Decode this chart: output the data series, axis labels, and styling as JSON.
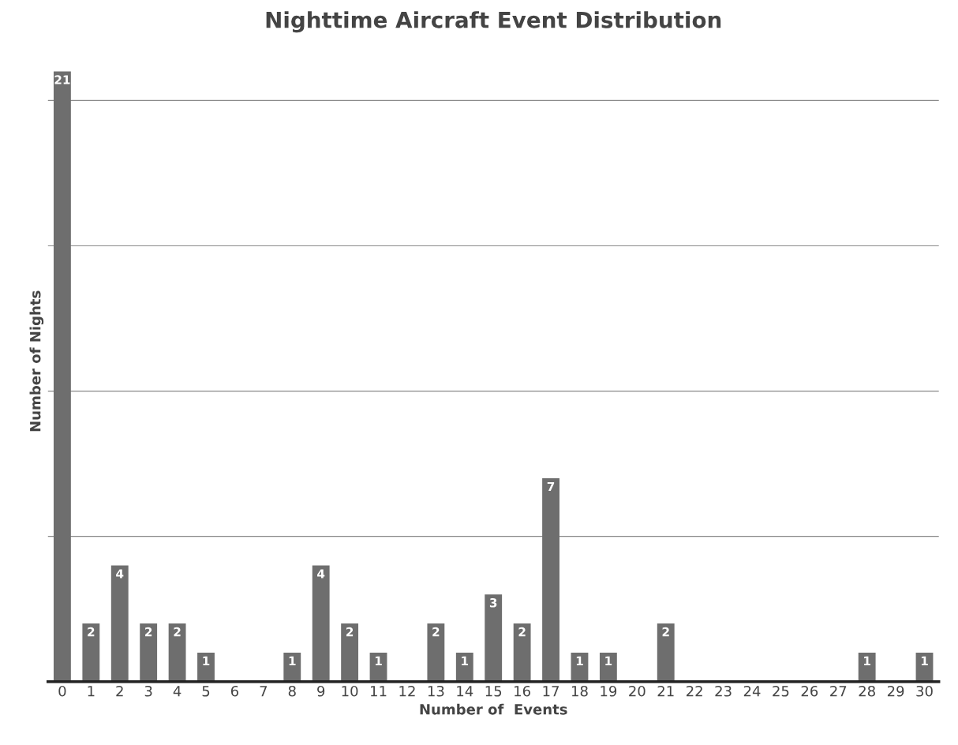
{
  "chart_data": {
    "type": "bar",
    "title": "Nighttime Aircraft Event Distribution",
    "xlabel": "Number of  Events",
    "ylabel": "Number of Nights",
    "categories": [
      "0",
      "1",
      "2",
      "3",
      "4",
      "5",
      "6",
      "7",
      "8",
      "9",
      "10",
      "11",
      "12",
      "13",
      "14",
      "15",
      "16",
      "17",
      "18",
      "19",
      "20",
      "21",
      "22",
      "23",
      "24",
      "25",
      "26",
      "27",
      "28",
      "29",
      "30"
    ],
    "values": [
      21,
      2,
      4,
      2,
      2,
      1,
      0,
      0,
      1,
      4,
      2,
      1,
      0,
      2,
      1,
      3,
      2,
      7,
      1,
      1,
      0,
      2,
      0,
      0,
      0,
      0,
      0,
      0,
      1,
      0,
      1
    ],
    "value_labels": [
      "21",
      "2",
      "4",
      "2",
      "2",
      "1",
      null,
      null,
      "1",
      "4",
      "2",
      "1",
      null,
      "2",
      "1",
      "3",
      "2",
      "7",
      "1",
      "1",
      null,
      "2",
      null,
      null,
      null,
      null,
      null,
      null,
      "1",
      null,
      "1"
    ],
    "color": "#6e6e6e",
    "yticks": [
      {
        "value": 0,
        "label": null
      },
      {
        "value": 5,
        "label": null
      },
      {
        "value": 10,
        "label": null
      },
      {
        "value": 15,
        "label": null
      },
      {
        "value": 20,
        "label": null
      }
    ],
    "tick_labels": "x",
    "grid": "y",
    "legend": false
  }
}
